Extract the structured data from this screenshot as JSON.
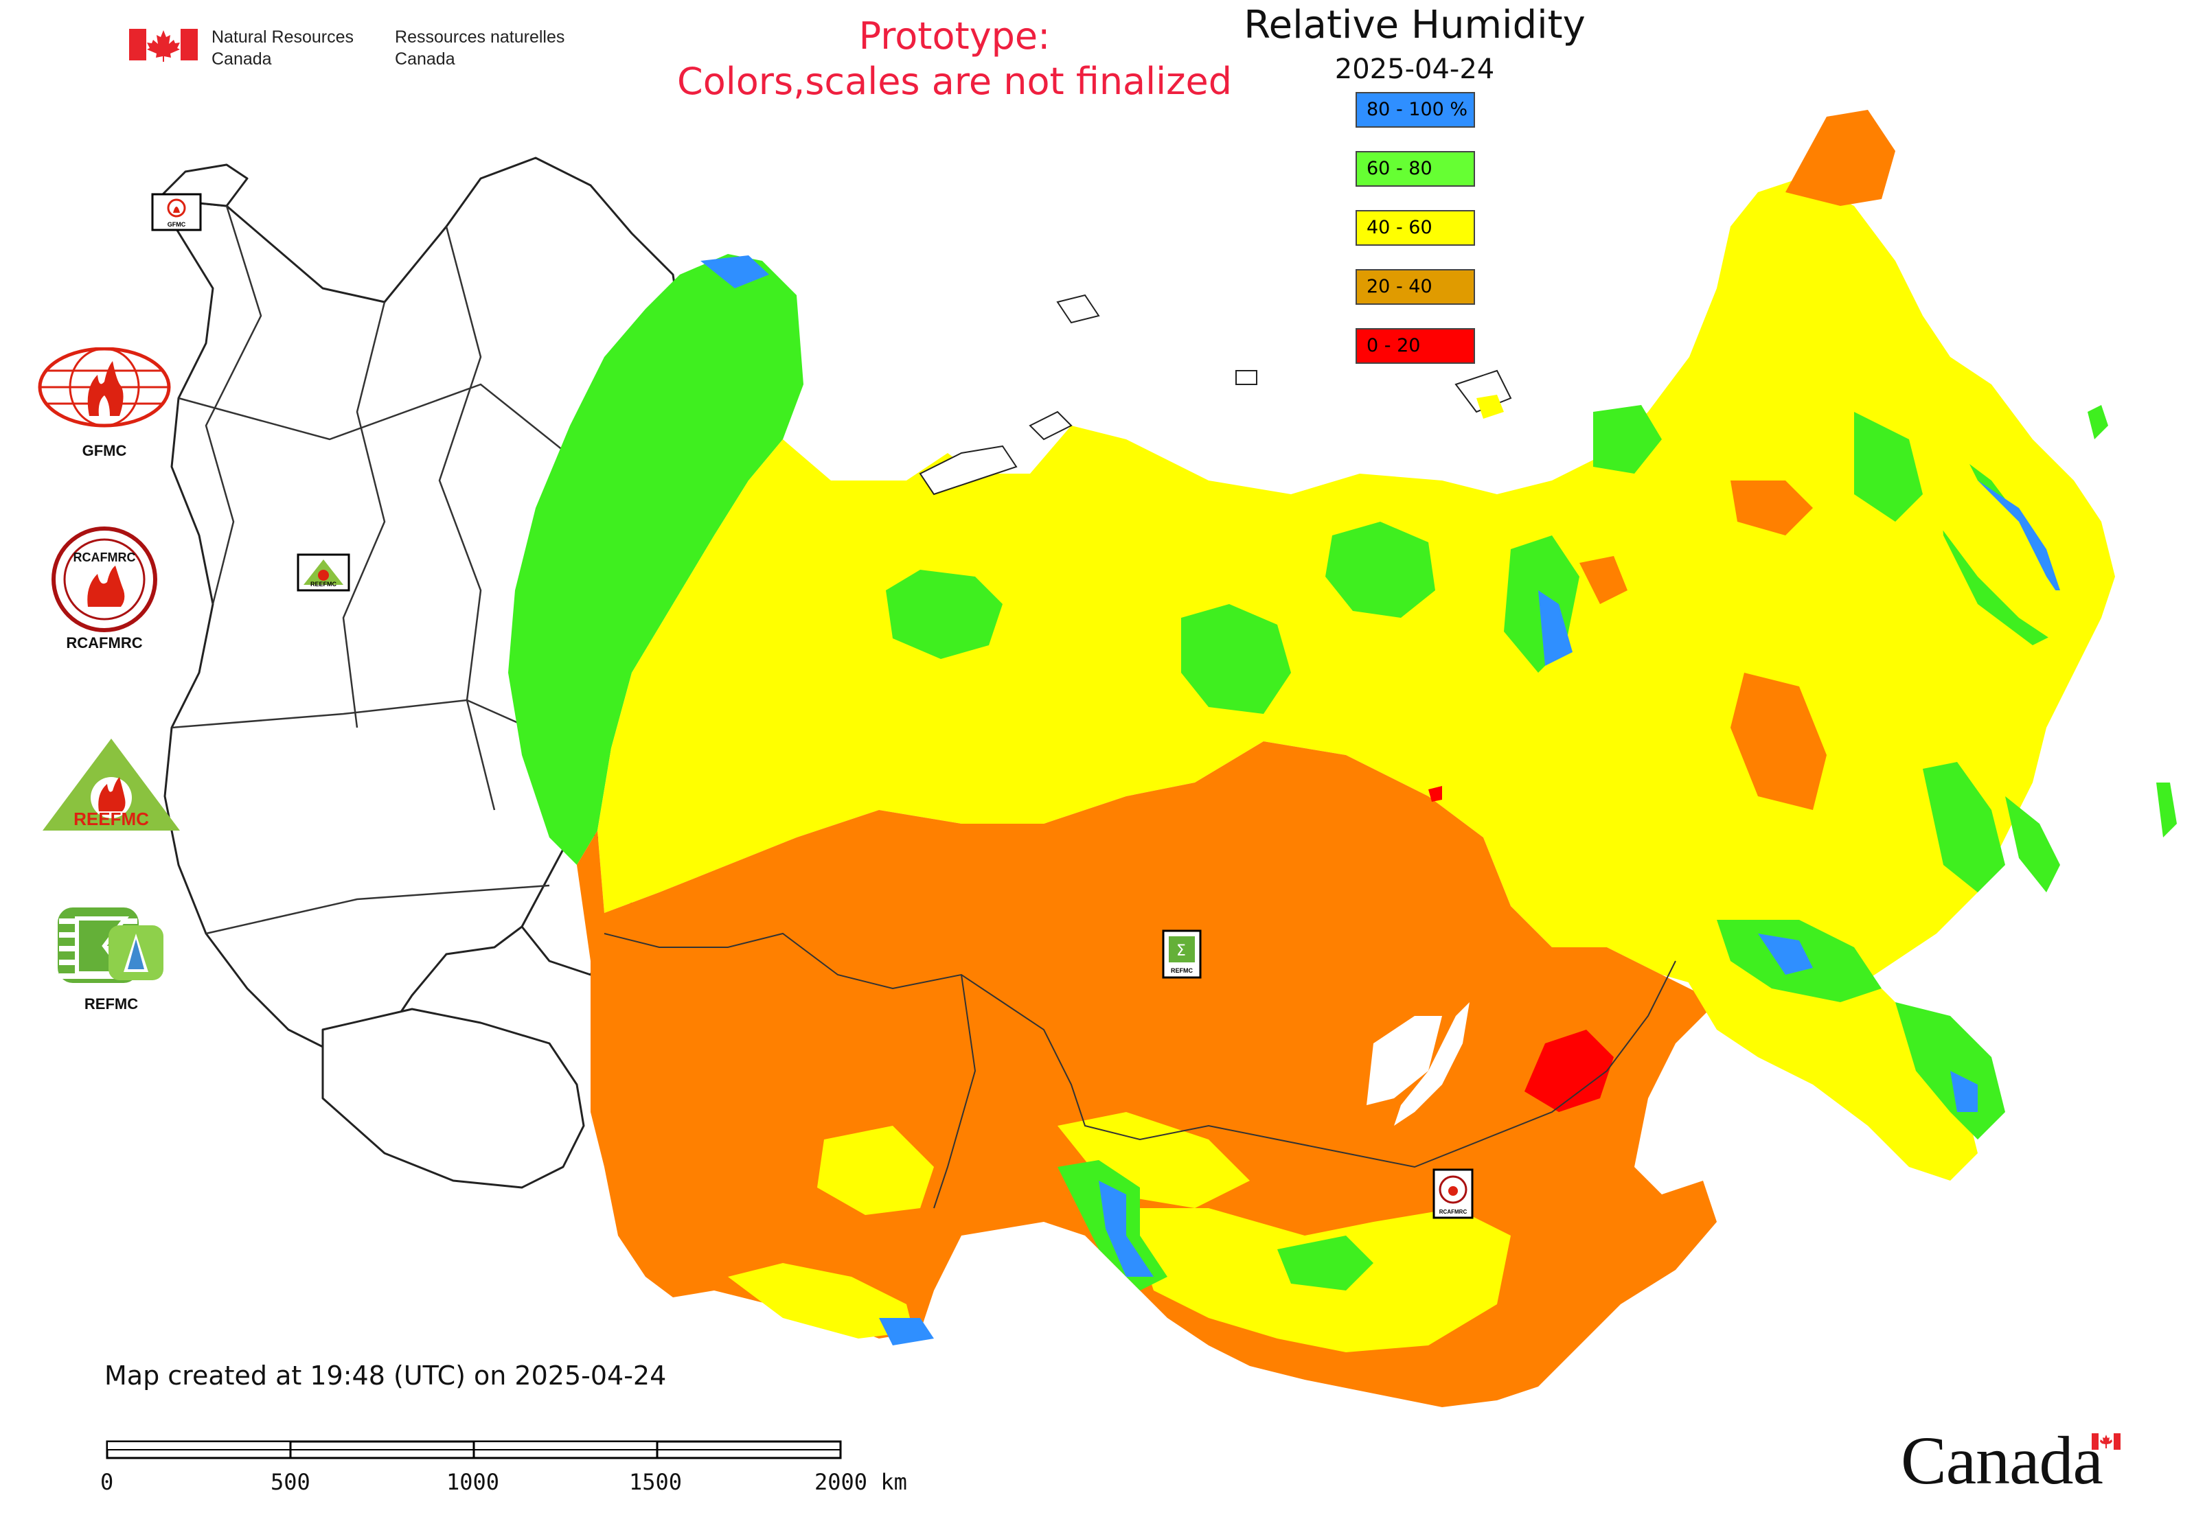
{
  "header": {
    "agency_en_line1": "Natural Resources",
    "agency_en_line2": "Canada",
    "agency_fr_line1": "Ressources naturelles",
    "agency_fr_line2": "Canada",
    "prototype_line1": "Prototype:",
    "prototype_line2": "Colors,scales are not finalized"
  },
  "map": {
    "title": "Relative Humidity",
    "date": "2025-04-24",
    "legend": [
      {
        "label": "80 - 100 %",
        "color": "#2f8fff"
      },
      {
        "label": "60 - 80",
        "color": "#66ff33"
      },
      {
        "label": "40 - 60",
        "color": "#ffff00"
      },
      {
        "label": "20 - 40",
        "color": "#e09b00"
      },
      {
        "label": "0 - 20",
        "color": "#ff0000"
      }
    ],
    "region_colors": {
      "very_humid": "#2f8fff",
      "humid": "#3fef1f",
      "moderate": "#ffff00",
      "dry": "#ff8000",
      "very_dry": "#ff0000"
    },
    "markers": [
      {
        "label": "GFMC"
      },
      {
        "label": "REEFMC"
      },
      {
        "label": "REFMC"
      },
      {
        "label": "RCAFMRC"
      }
    ]
  },
  "partners": [
    {
      "name": "GFMC",
      "icon": "gfmc-flame-globe-icon"
    },
    {
      "name": "RCAFMRC",
      "icon": "rcafmrc-seal-icon"
    },
    {
      "name": "",
      "icon": "reefmc-triangle-icon",
      "logo_text": "REEFMC"
    },
    {
      "name": "REFMC",
      "icon": "refmc-sigma-icon"
    }
  ],
  "footer": {
    "created_text": "Map created at 19:48 (UTC) on 2025-04-24",
    "scale_ticks": [
      "0",
      "500",
      "1000",
      "1500",
      "2000 km"
    ],
    "wordmark": "Canada"
  }
}
